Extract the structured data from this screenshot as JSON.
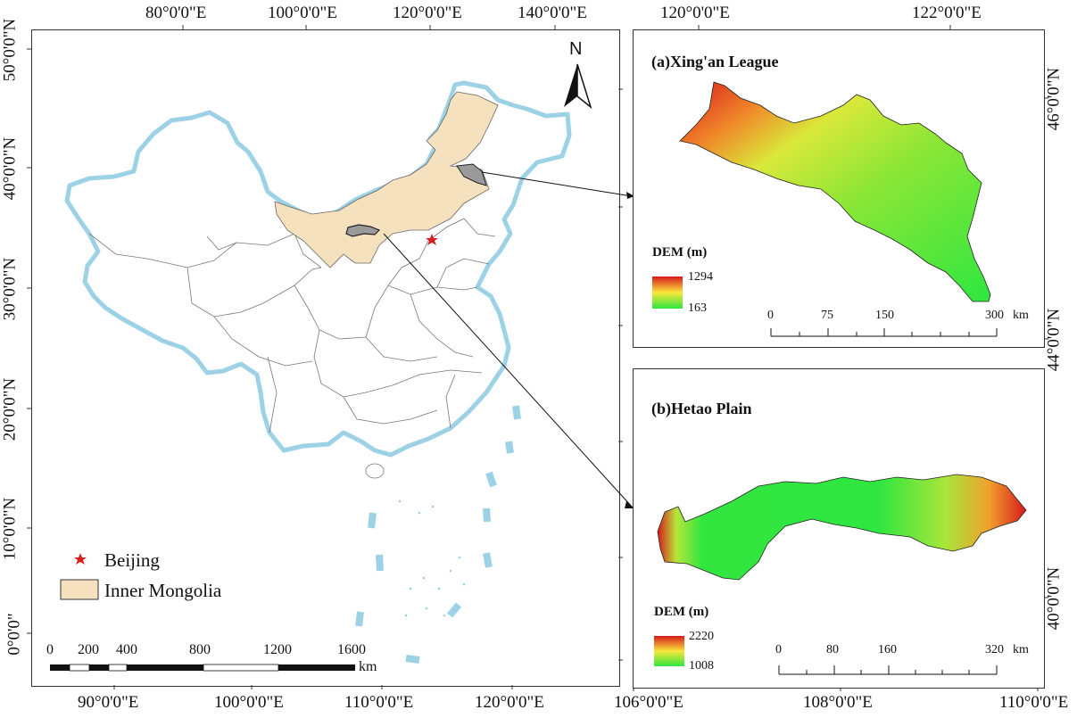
{
  "main_map": {
    "top_lon_labels": [
      "80°0'0\"E",
      "100°0'0\"E",
      "120°0'0\"E",
      "140°0'0\"E"
    ],
    "bottom_lon_labels": [
      "90°0'0\"E",
      "100°0'0\"E",
      "110°0'0\"E",
      "120°0'0\"E"
    ],
    "left_lat_labels": [
      "50°0'0\"N",
      "40°0'0\"N",
      "30°0'0\"N",
      "20°0'0\"N",
      "10°0'0\"N",
      "0°0'0\""
    ],
    "north_label": "N",
    "legend": {
      "beijing": "Beijing",
      "inner_mongolia": "Inner Mongolia"
    },
    "scale": {
      "ticks": [
        "0",
        "200",
        "400",
        "800",
        "1200",
        "1600"
      ],
      "unit": "km"
    }
  },
  "panel_a": {
    "title": "(a)Xing'an League",
    "top_lon_labels": [
      "120°0'0\"E",
      "122°0'0\"E"
    ],
    "right_lat_labels": [
      "46°0'0\"N",
      "44°0'0\"N"
    ],
    "dem_title": "DEM (m)",
    "dem_max": "1294",
    "dem_min": "163",
    "scale_ticks": [
      "0",
      "75",
      "150",
      "300"
    ],
    "scale_unit": "km"
  },
  "panel_b": {
    "title": "(b)Hetao Plain",
    "bottom_lon_labels": [
      "106°0'0\"E",
      "108°0'0\"E",
      "110°0'0\"E"
    ],
    "right_lat_labels": [
      "40°0'0\"N"
    ],
    "dem_title": "DEM (m)",
    "dem_max": "2220",
    "dem_min": "1008",
    "scale_ticks": [
      "0",
      "80",
      "160",
      "320"
    ],
    "scale_unit": "km"
  },
  "colors": {
    "border_blue": "#9dd2e6",
    "inner_mongolia_fill": "#f6e1bf",
    "beijing_star": "#d42020",
    "dem_high": "#d7191c",
    "dem_mid": "#f9e73b",
    "dem_low": "#2ee640"
  }
}
